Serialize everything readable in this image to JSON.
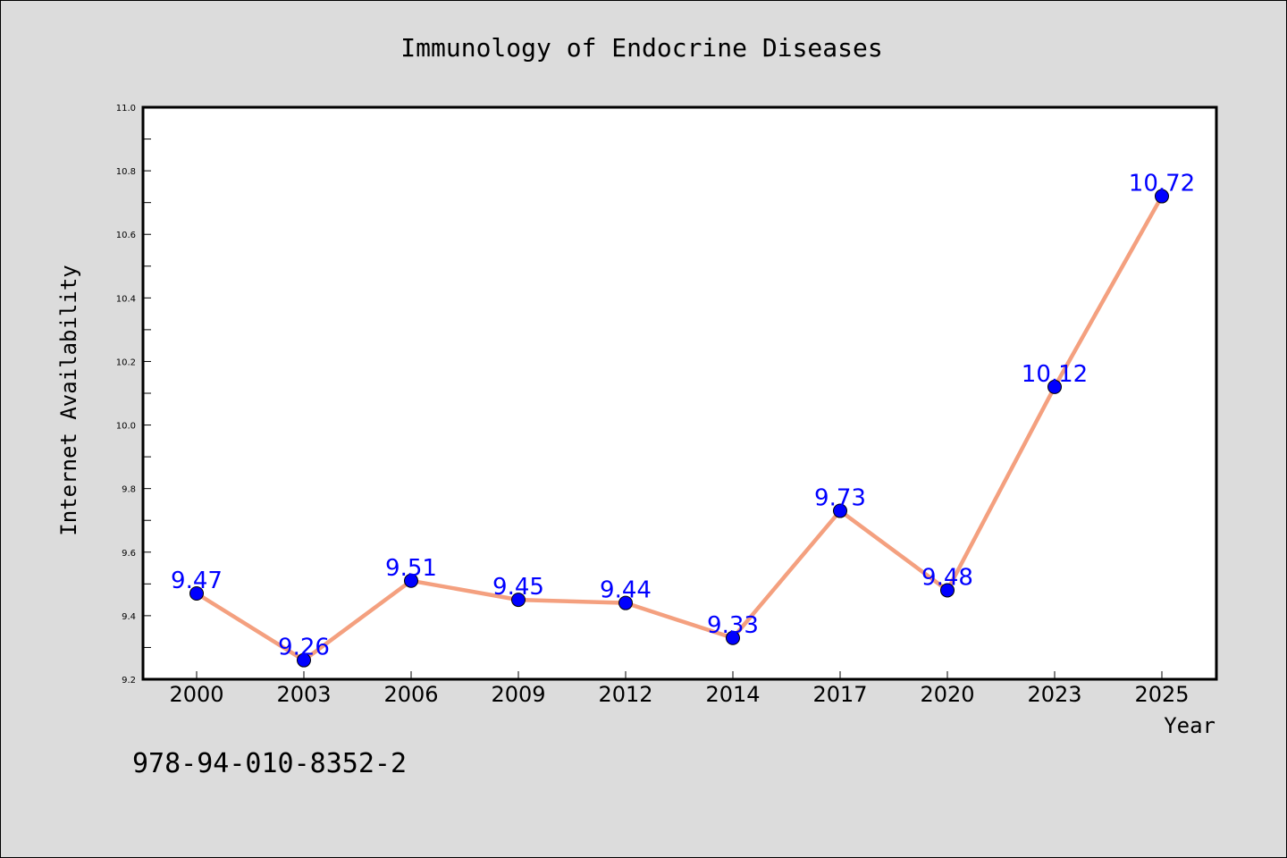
{
  "chart_data": {
    "type": "line",
    "title": "Immunology of Endocrine Diseases",
    "xlabel": "Year",
    "ylabel": "Internet Availability",
    "categories": [
      "2000",
      "2003",
      "2006",
      "2009",
      "2012",
      "2014",
      "2017",
      "2020",
      "2023",
      "2025"
    ],
    "series": [
      {
        "values": [
          9.47,
          9.26,
          9.51,
          9.45,
          9.44,
          9.33,
          9.73,
          9.48,
          10.12,
          10.72
        ],
        "labels": [
          "9.47",
          "9.26",
          "9.51",
          "9.45",
          "9.44",
          "9.33",
          "9.73",
          "9.48",
          "10.12",
          "10.72"
        ],
        "line_color": "#f4a07f",
        "marker_color": "#0000ff"
      }
    ],
    "ylim": [
      9.2,
      11.0
    ],
    "yticks": [
      "9.2",
      "9.4",
      "9.6",
      "9.8",
      "10.0",
      "10.2",
      "10.4",
      "10.6",
      "10.8",
      "11.0"
    ],
    "grid": false,
    "legend": "none"
  },
  "annotation": "978-94-010-8352-2"
}
